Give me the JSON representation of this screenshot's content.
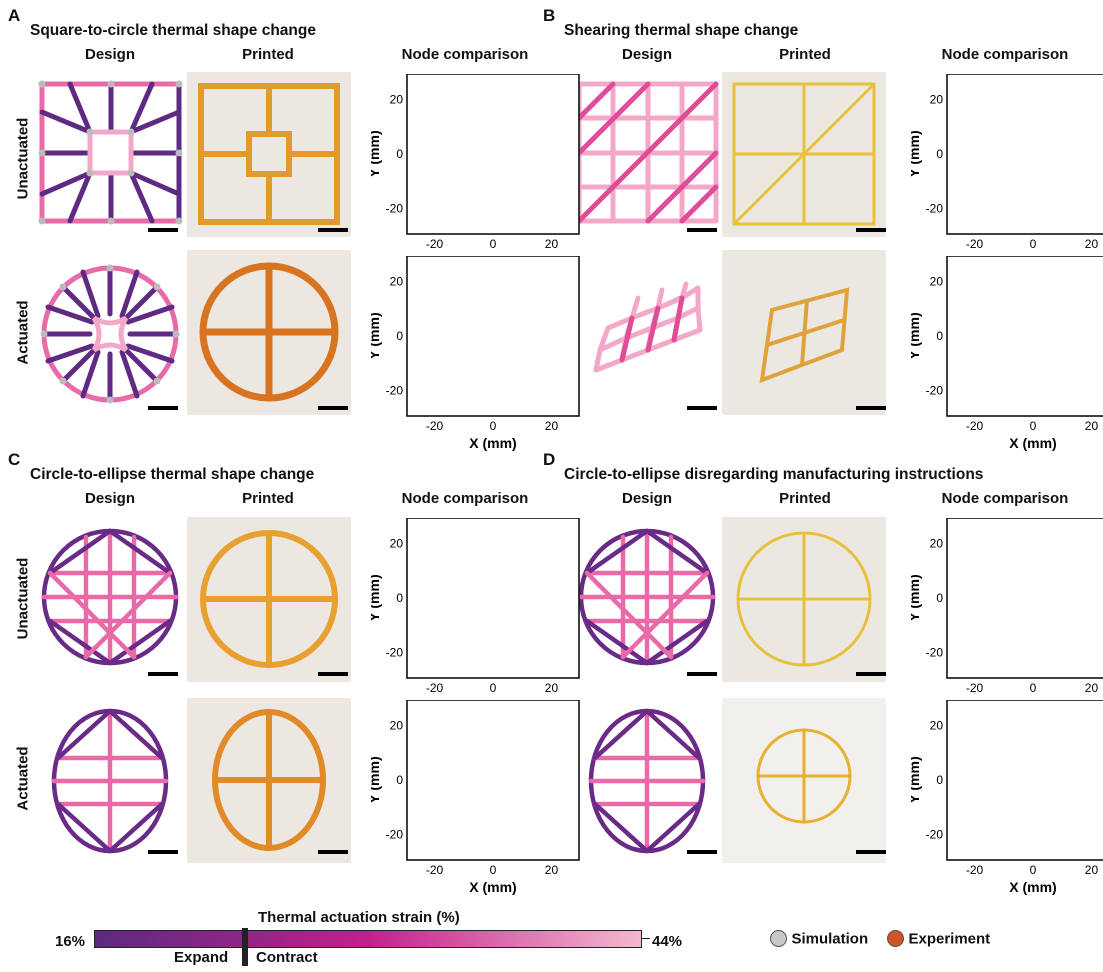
{
  "panels": [
    {
      "letter": "A",
      "title": "Square-to-circle thermal shape change"
    },
    {
      "letter": "B",
      "title": "Shearing thermal shape change"
    },
    {
      "letter": "C",
      "title": "Circle-to-ellipse thermal shape change"
    },
    {
      "letter": "D",
      "title": "Circle-to-ellipse disregarding manufacturing instructions"
    }
  ],
  "columns": {
    "design": "Design",
    "printed": "Printed",
    "nodes": "Node comparison"
  },
  "rows": {
    "unactuated": "Unactuated",
    "actuated": "Actuated"
  },
  "axes": {
    "xlabel": "X (mm)",
    "ylabel": "Y (mm)",
    "ticks": [
      "-20",
      "0",
      "20"
    ]
  },
  "colorbar": {
    "title": "Thermal actuation strain (%)",
    "min_label": "16%",
    "max_label": "44%",
    "left_label": "Expand",
    "right_label": "Contract",
    "colors": [
      "#5a2a82",
      "#c2208c",
      "#f5b8cf"
    ]
  },
  "legend": {
    "simulation": "Simulation",
    "experiment": "Experiment",
    "sim_color": "#c8c8c8",
    "exp_color": "#d0532a"
  }
}
